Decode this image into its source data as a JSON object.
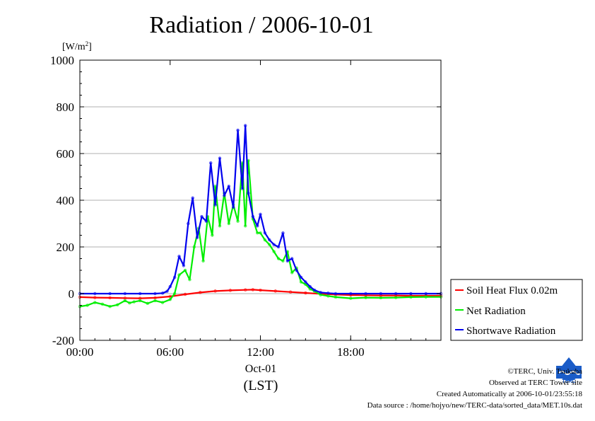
{
  "chart_data": {
    "type": "line",
    "title": "Radiation / 2006-10-01",
    "ylabel": "[W/m",
    "ylabel_sup": "2",
    "ylabel_close": "]",
    "xlabel_date": "Oct-01",
    "xlabel": "(LST)",
    "ylim": [
      -200,
      1000
    ],
    "yticks": [
      -200,
      0,
      200,
      400,
      600,
      800,
      1000
    ],
    "ytick_labels": [
      "-200",
      "0",
      "200",
      "400",
      "600",
      "800",
      "1000"
    ],
    "xlim_hours": [
      0,
      24
    ],
    "xticks_hours": [
      0,
      6,
      12,
      18
    ],
    "xtick_labels": [
      "00:00",
      "06:00",
      "12:00",
      "18:00"
    ],
    "grid": true,
    "legend_position": "right",
    "series": [
      {
        "name": "Soil Heat Flux 0.02m",
        "color": "#ff0000",
        "x": [
          0,
          1,
          2,
          3,
          4,
          5,
          6,
          7,
          8,
          9,
          10,
          11,
          11.5,
          12,
          13,
          14,
          15,
          16,
          17,
          18,
          19,
          20,
          21,
          22,
          23,
          24
        ],
        "y": [
          -15,
          -17,
          -18,
          -19,
          -20,
          -18,
          -12,
          -3,
          5,
          11,
          14,
          16,
          17,
          15,
          11,
          7,
          3,
          -1,
          -4,
          -6,
          -7,
          -8,
          -8,
          -9,
          -9,
          -9
        ]
      },
      {
        "name": "Net Radiation",
        "color": "#00ee00",
        "x": [
          0,
          0.5,
          1,
          1.5,
          2,
          2.5,
          3,
          3.3,
          3.6,
          4,
          4.5,
          5,
          5.5,
          6,
          6.3,
          6.6,
          7,
          7.3,
          7.6,
          7.9,
          8.2,
          8.5,
          8.8,
          9.0,
          9.3,
          9.6,
          9.9,
          10.2,
          10.5,
          10.8,
          11.0,
          11.2,
          11.5,
          11.8,
          12.0,
          12.3,
          12.6,
          12.9,
          13.2,
          13.5,
          13.8,
          14.1,
          14.4,
          14.7,
          15.0,
          15.3,
          15.6,
          16.0,
          16.5,
          17,
          18,
          19,
          20,
          21,
          22,
          23,
          24
        ],
        "y": [
          -55,
          -50,
          -38,
          -45,
          -55,
          -48,
          -30,
          -40,
          -35,
          -30,
          -42,
          -30,
          -38,
          -25,
          0,
          80,
          100,
          60,
          200,
          280,
          140,
          330,
          250,
          460,
          290,
          430,
          300,
          380,
          310,
          560,
          290,
          570,
          320,
          260,
          260,
          230,
          210,
          180,
          150,
          140,
          180,
          90,
          110,
          50,
          40,
          20,
          10,
          -5,
          -10,
          -15,
          -20,
          -17,
          -18,
          -17,
          -15,
          -14,
          -14
        ]
      },
      {
        "name": "Shortwave Radiation",
        "color": "#0000ee",
        "x": [
          0,
          1,
          2,
          3,
          4,
          5,
          5.5,
          5.8,
          6.0,
          6.3,
          6.6,
          6.9,
          7.2,
          7.5,
          7.8,
          8.1,
          8.4,
          8.7,
          9.0,
          9.3,
          9.6,
          9.9,
          10.2,
          10.5,
          10.8,
          11.0,
          11.2,
          11.5,
          11.8,
          12.0,
          12.3,
          12.6,
          12.9,
          13.2,
          13.5,
          13.8,
          14.1,
          14.4,
          14.7,
          15.0,
          15.3,
          15.6,
          16.0,
          16.5,
          17,
          18,
          19,
          20,
          21,
          22,
          23,
          24
        ],
        "y": [
          0,
          0,
          0,
          0,
          0,
          0,
          2,
          10,
          30,
          70,
          160,
          120,
          300,
          410,
          240,
          330,
          310,
          560,
          380,
          580,
          420,
          460,
          370,
          700,
          450,
          720,
          430,
          330,
          290,
          340,
          260,
          230,
          210,
          200,
          260,
          140,
          150,
          100,
          70,
          50,
          30,
          15,
          5,
          2,
          0,
          0,
          0,
          0,
          0,
          0,
          0,
          0
        ]
      }
    ]
  },
  "credits": {
    "copyright": "©TERC, Univ. Tsukuba",
    "observed": "Observed at TERC Tower site",
    "created": "Created Automatically at 2006-10-01/23:55:18",
    "source": "Data source : /home/hojyo/new/TERC-data/sorted_data/MET.10s.dat"
  },
  "logo": {
    "text": "TERC",
    "color": "#1a5cc8"
  }
}
